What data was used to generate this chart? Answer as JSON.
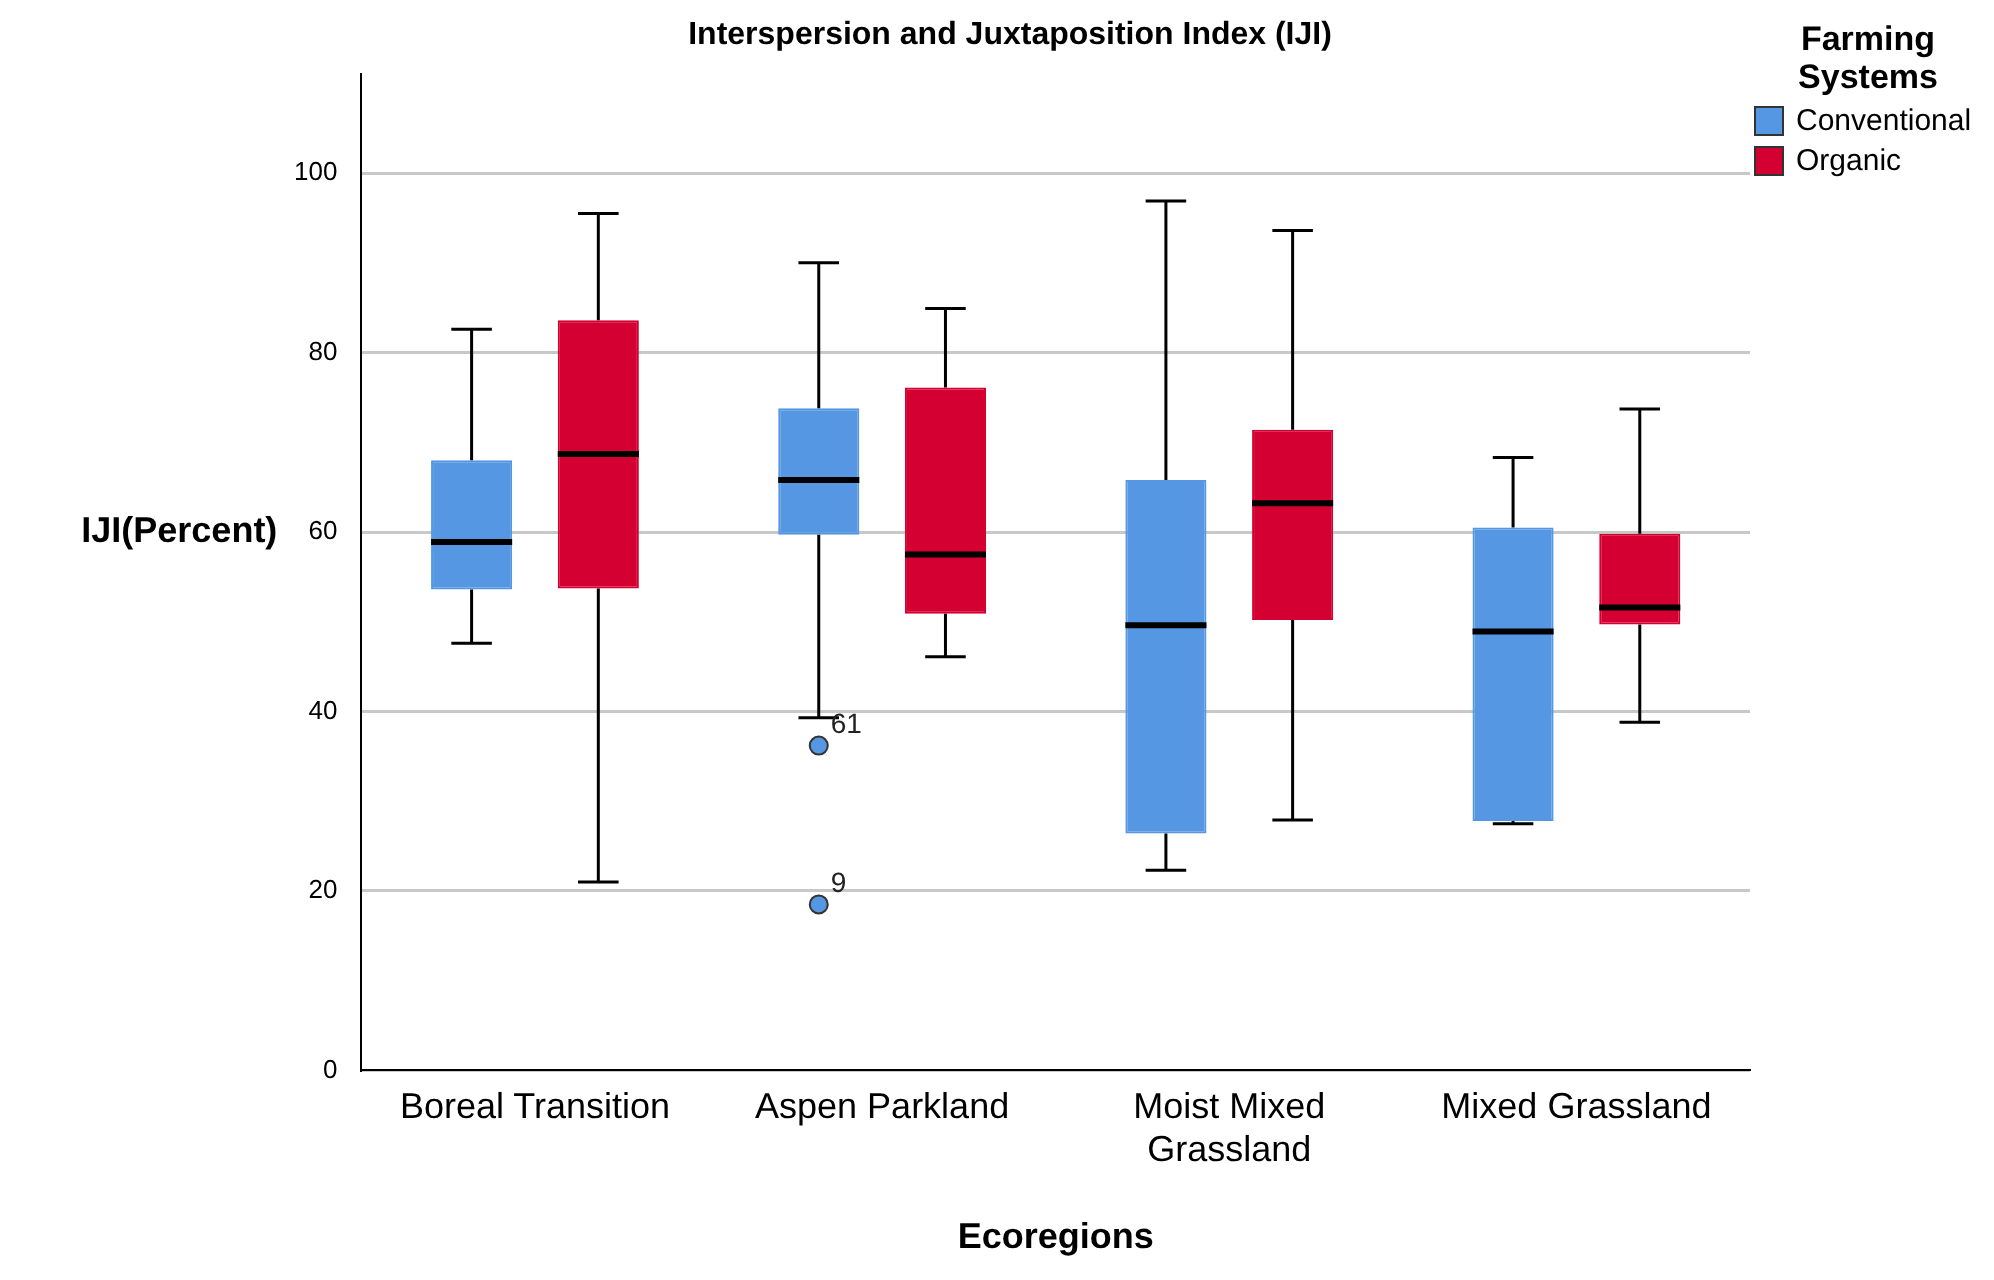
{
  "chart_data": {
    "type": "box",
    "title": "Interspersion and Juxtaposition Index (IJI)",
    "xlabel": "Ecoregions",
    "ylabel": "IJI(Percent)",
    "legend_title": "Farming Systems",
    "categories": [
      "Boreal Transition",
      "Aspen Parkland",
      "Moist Mixed Grassland",
      "Mixed Grassland"
    ],
    "series": [
      {
        "name": "Conventional",
        "color": "#5597e3",
        "boxes": [
          {
            "low": 47.6,
            "q1": 53.6,
            "median": 58.9,
            "q3": 68.0,
            "high": 82.6
          },
          {
            "low": 39.3,
            "q1": 59.7,
            "median": 65.8,
            "q3": 73.8,
            "high": 90.0,
            "outliers": [
              36.2,
              18.5
            ]
          },
          {
            "low": 22.3,
            "q1": 26.4,
            "median": 49.6,
            "q3": 65.8,
            "high": 96.9
          },
          {
            "low": 27.5,
            "q1": 27.8,
            "median": 48.9,
            "q3": 60.5,
            "high": 68.3
          }
        ]
      },
      {
        "name": "Organic",
        "color": "#d50032",
        "boxes": [
          {
            "low": 21.0,
            "q1": 53.7,
            "median": 68.7,
            "q3": 83.6,
            "high": 95.5
          },
          {
            "low": 46.1,
            "q1": 50.9,
            "median": 57.5,
            "q3": 76.1,
            "high": 84.9
          },
          {
            "low": 27.9,
            "q1": 50.2,
            "median": 63.2,
            "q3": 71.4,
            "high": 93.6
          },
          {
            "low": 38.8,
            "q1": 49.7,
            "median": 51.6,
            "q3": 59.8,
            "high": 73.7
          }
        ]
      }
    ],
    "annotations": [
      "61",
      "9"
    ],
    "ylim": [
      0,
      111
    ],
    "yticks": [
      0,
      20,
      40,
      60,
      80,
      100
    ],
    "grid": "y",
    "legend": "top right"
  }
}
